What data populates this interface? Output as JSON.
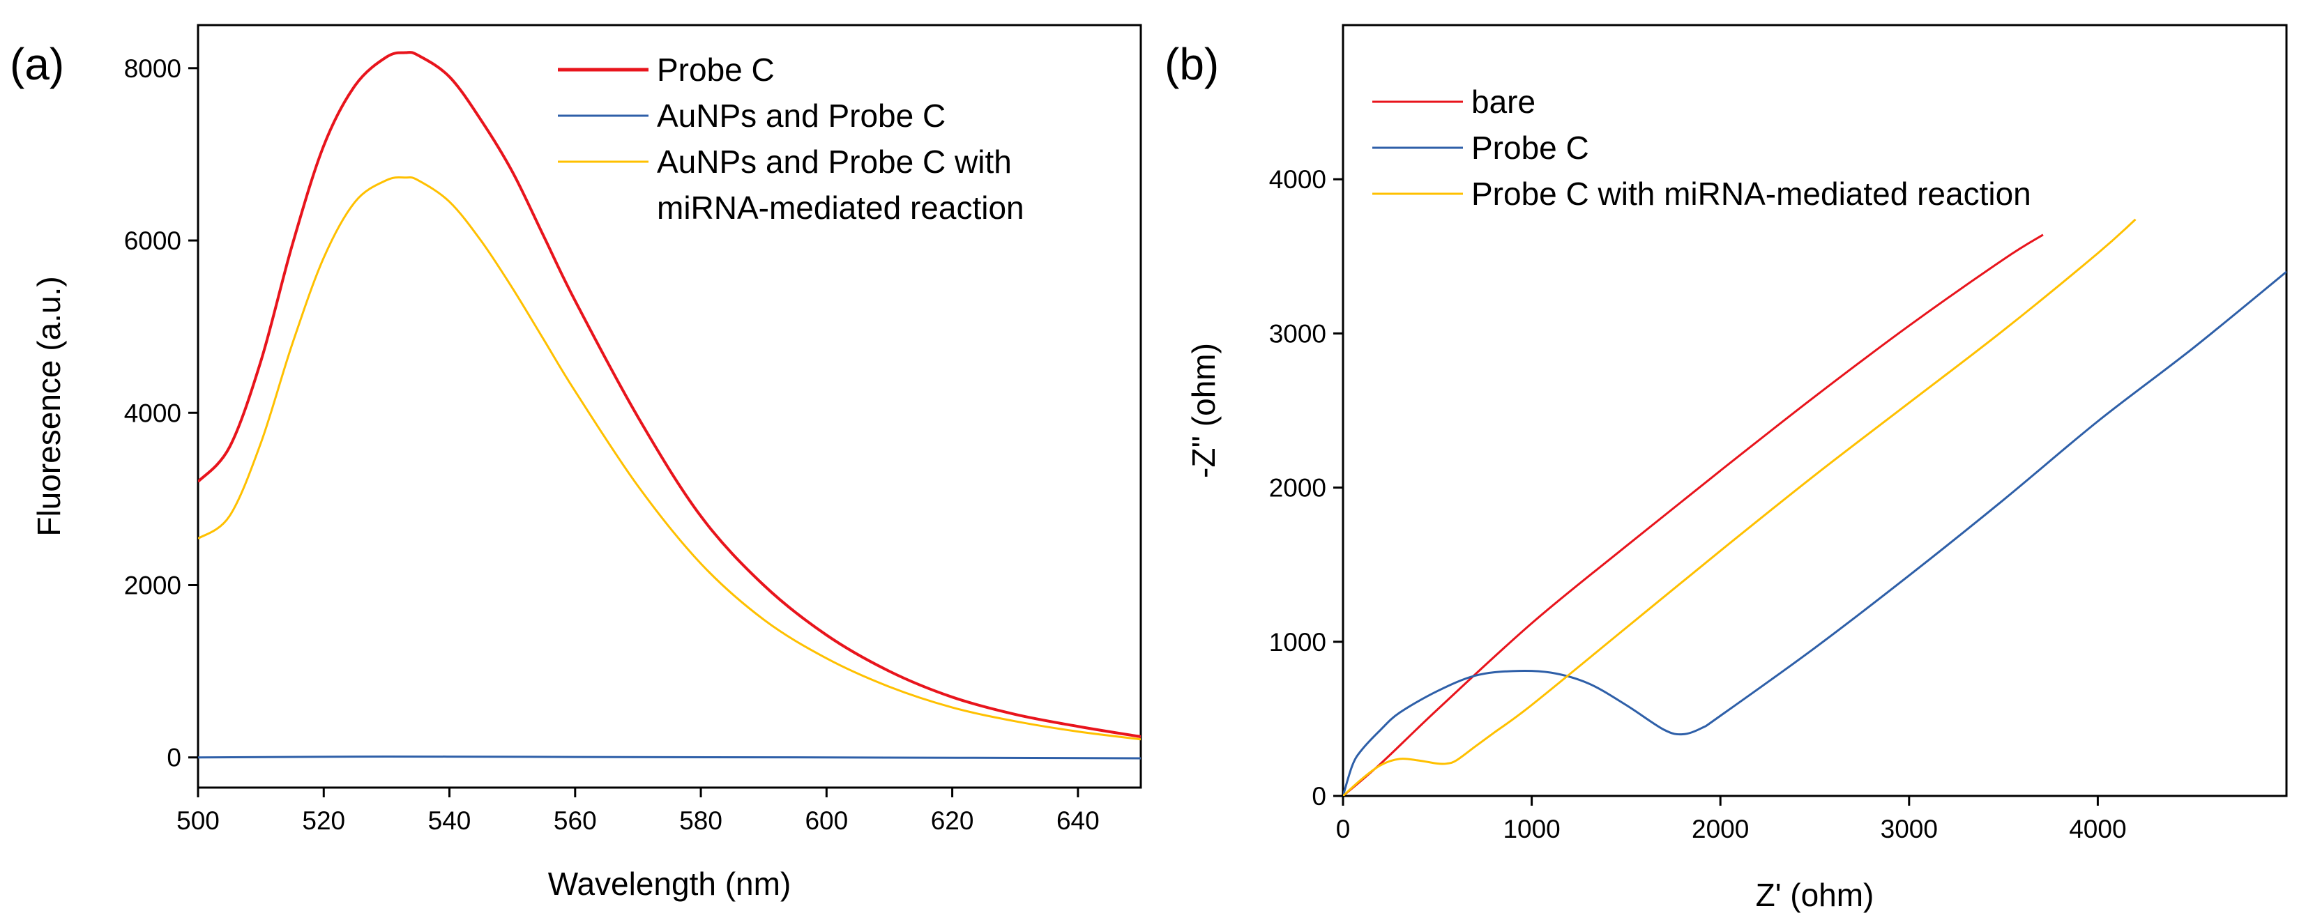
{
  "chart_data": [
    {
      "panel": "(a)",
      "type": "line",
      "title": "",
      "xlabel": "Wavelength (nm)",
      "ylabel": "Fluoresence (a.u.)",
      "xlim": [
        500,
        650
      ],
      "ylim": [
        -350,
        8500
      ],
      "xticks": [
        500,
        520,
        540,
        560,
        580,
        600,
        620,
        640
      ],
      "yticks": [
        0,
        2000,
        4000,
        6000,
        8000
      ],
      "grid": false,
      "legend_position": "top-right",
      "series": [
        {
          "name": "Probe C",
          "color": "#e8141c",
          "x": [
            500,
            505,
            510,
            515,
            520,
            525,
            530,
            533,
            535,
            540,
            545,
            550,
            555,
            560,
            570,
            580,
            590,
            600,
            610,
            620,
            630,
            640,
            650
          ],
          "y": [
            3200,
            3600,
            4600,
            5950,
            7100,
            7800,
            8130,
            8180,
            8150,
            7900,
            7400,
            6800,
            6050,
            5300,
            3950,
            2800,
            2000,
            1420,
            1000,
            700,
            500,
            360,
            240
          ]
        },
        {
          "name": "AuNPs and Probe C",
          "color": "#2e5fa8",
          "x": [
            500,
            530,
            560,
            600,
            650
          ],
          "y": [
            0,
            10,
            5,
            0,
            -10
          ]
        },
        {
          "name": "AuNPs and Probe C with miRNA-mediated reaction",
          "legend_lines": [
            "AuNPs and Probe C with",
            "miRNA-mediated reaction"
          ],
          "color": "#ffc000",
          "x": [
            500,
            505,
            510,
            515,
            520,
            525,
            530,
            533,
            535,
            540,
            545,
            550,
            555,
            560,
            570,
            580,
            590,
            600,
            610,
            620,
            630,
            640,
            650
          ],
          "y": [
            2540,
            2800,
            3650,
            4800,
            5800,
            6450,
            6700,
            6730,
            6700,
            6450,
            6000,
            5450,
            4850,
            4250,
            3150,
            2250,
            1600,
            1150,
            820,
            580,
            420,
            300,
            210
          ]
        }
      ]
    },
    {
      "panel": "(b)",
      "type": "line",
      "title": "",
      "xlabel": "Z' (ohm)",
      "ylabel": "-Z'' (ohm)",
      "xlim": [
        0,
        5000
      ],
      "ylim": [
        0,
        5000
      ],
      "xticks": [
        0,
        1000,
        2000,
        3000,
        4000
      ],
      "yticks": [
        0,
        1000,
        2000,
        3000,
        4000
      ],
      "grid": false,
      "legend_position": "top-left",
      "series": [
        {
          "name": "bare",
          "color": "#e8141c",
          "x": [
            0,
            200,
            500,
            1000,
            1500,
            2000,
            2500,
            3000,
            3500,
            3710
          ],
          "y": [
            0,
            210,
            560,
            1120,
            1620,
            2110,
            2590,
            3050,
            3480,
            3640
          ]
        },
        {
          "name": "Probe C",
          "color": "#2e5fa8",
          "x": [
            0,
            50,
            100,
            200,
            300,
            500,
            700,
            900,
            1100,
            1300,
            1500,
            1700,
            1800,
            1900,
            2000,
            2500,
            3000,
            3500,
            4000,
            4500,
            5000
          ],
          "y": [
            0,
            200,
            300,
            430,
            540,
            680,
            780,
            810,
            800,
            730,
            590,
            430,
            400,
            440,
            520,
            960,
            1430,
            1920,
            2430,
            2900,
            3400
          ]
        },
        {
          "name": "Probe C with miRNA-mediated reaction",
          "color": "#ffc000",
          "x": [
            0,
            100,
            200,
            300,
            400,
            500,
            550,
            600,
            700,
            800,
            1000,
            1500,
            2000,
            2500,
            3000,
            3500,
            4000,
            4200
          ],
          "y": [
            0,
            110,
            200,
            240,
            230,
            210,
            210,
            230,
            320,
            410,
            590,
            1090,
            1590,
            2080,
            2550,
            3020,
            3520,
            3740
          ]
        }
      ]
    }
  ]
}
